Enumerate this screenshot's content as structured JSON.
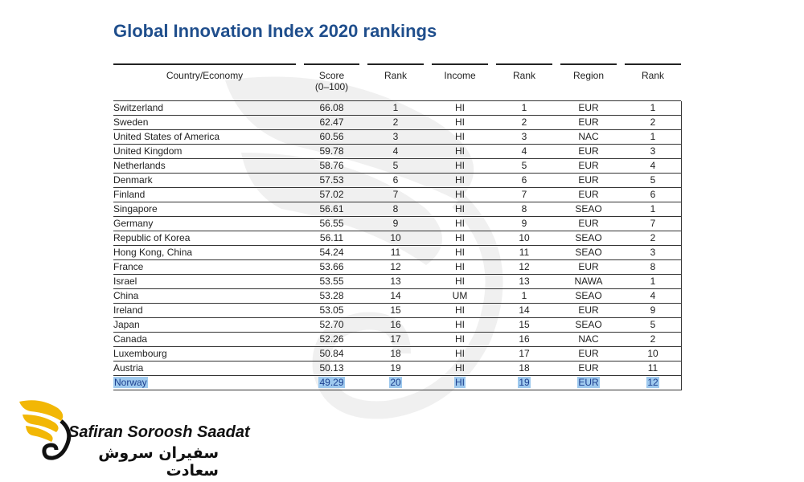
{
  "title": "Global Innovation Index 2020 rankings",
  "headers": {
    "country": "Country/Economy",
    "score": "Score",
    "score_sub": "(0–100)",
    "rank_overall": "Rank",
    "income": "Income",
    "rank_income": "Rank",
    "region": "Region",
    "rank_region": "Rank"
  },
  "rows": [
    {
      "country": "Switzerland",
      "score": "66.08",
      "rank": "1",
      "income": "HI",
      "income_rank": "1",
      "region": "EUR",
      "region_rank": "1"
    },
    {
      "country": "Sweden",
      "score": "62.47",
      "rank": "2",
      "income": "HI",
      "income_rank": "2",
      "region": "EUR",
      "region_rank": "2"
    },
    {
      "country": "United States of America",
      "score": "60.56",
      "rank": "3",
      "income": "HI",
      "income_rank": "3",
      "region": "NAC",
      "region_rank": "1"
    },
    {
      "country": "United Kingdom",
      "score": "59.78",
      "rank": "4",
      "income": "HI",
      "income_rank": "4",
      "region": "EUR",
      "region_rank": "3"
    },
    {
      "country": "Netherlands",
      "score": "58.76",
      "rank": "5",
      "income": "HI",
      "income_rank": "5",
      "region": "EUR",
      "region_rank": "4"
    },
    {
      "country": "Denmark",
      "score": "57.53",
      "rank": "6",
      "income": "HI",
      "income_rank": "6",
      "region": "EUR",
      "region_rank": "5"
    },
    {
      "country": "Finland",
      "score": "57.02",
      "rank": "7",
      "income": "HI",
      "income_rank": "7",
      "region": "EUR",
      "region_rank": "6"
    },
    {
      "country": "Singapore",
      "score": "56.61",
      "rank": "8",
      "income": "HI",
      "income_rank": "8",
      "region": "SEAO",
      "region_rank": "1"
    },
    {
      "country": "Germany",
      "score": "56.55",
      "rank": "9",
      "income": "HI",
      "income_rank": "9",
      "region": "EUR",
      "region_rank": "7"
    },
    {
      "country": "Republic of Korea",
      "score": "56.11",
      "rank": "10",
      "income": "HI",
      "income_rank": "10",
      "region": "SEAO",
      "region_rank": "2"
    },
    {
      "country": "Hong Kong, China",
      "score": "54.24",
      "rank": "11",
      "income": "HI",
      "income_rank": "11",
      "region": "SEAO",
      "region_rank": "3"
    },
    {
      "country": "France",
      "score": "53.66",
      "rank": "12",
      "income": "HI",
      "income_rank": "12",
      "region": "EUR",
      "region_rank": "8"
    },
    {
      "country": "Israel",
      "score": "53.55",
      "rank": "13",
      "income": "HI",
      "income_rank": "13",
      "region": "NAWA",
      "region_rank": "1"
    },
    {
      "country": "China",
      "score": "53.28",
      "rank": "14",
      "income": "UM",
      "income_rank": "1",
      "region": "SEAO",
      "region_rank": "4"
    },
    {
      "country": "Ireland",
      "score": "53.05",
      "rank": "15",
      "income": "HI",
      "income_rank": "14",
      "region": "EUR",
      "region_rank": "9"
    },
    {
      "country": "Japan",
      "score": "52.70",
      "rank": "16",
      "income": "HI",
      "income_rank": "15",
      "region": "SEAO",
      "region_rank": "5"
    },
    {
      "country": "Canada",
      "score": "52.26",
      "rank": "17",
      "income": "HI",
      "income_rank": "16",
      "region": "NAC",
      "region_rank": "2"
    },
    {
      "country": "Luxembourg",
      "score": "50.84",
      "rank": "18",
      "income": "HI",
      "income_rank": "17",
      "region": "EUR",
      "region_rank": "10"
    },
    {
      "country": "Austria",
      "score": "50.13",
      "rank": "19",
      "income": "HI",
      "income_rank": "18",
      "region": "EUR",
      "region_rank": "11"
    },
    {
      "country": "Norway",
      "score": "49.29",
      "rank": "20",
      "income": "HI",
      "income_rank": "19",
      "region": "EUR",
      "region_rank": "12",
      "highlighted": true
    }
  ],
  "brand": {
    "name_en": "Safiran Soroosh Saadat",
    "name_fa": "سفیران سروش سعادت"
  },
  "colors": {
    "title": "#1f4e8c",
    "highlight": "#9ec9ee",
    "logo_gold": "#f2b705"
  }
}
